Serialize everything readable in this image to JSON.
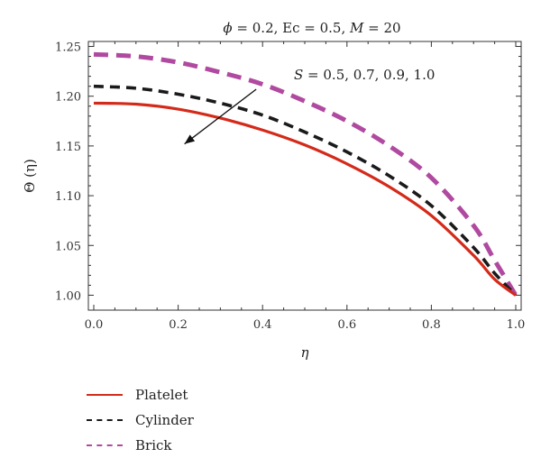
{
  "chart_data": {
    "type": "line",
    "title_parts": [
      "ϕ = 0.2, Ec = 0.5, ",
      "M",
      " = 20"
    ],
    "xlabel": "η",
    "ylabel": "Θ (η)",
    "xlim": [
      0.0,
      1.0
    ],
    "ylim": [
      0.985,
      1.255
    ],
    "xticks": [
      0.0,
      0.2,
      0.4,
      0.6,
      0.8,
      1.0
    ],
    "xtick_labels": [
      "0.0",
      "0.2",
      "0.4",
      "0.6",
      "0.8",
      "1.0"
    ],
    "yticks": [
      1.0,
      1.05,
      1.1,
      1.15,
      1.2,
      1.25
    ],
    "ytick_labels": [
      "1.00",
      "1.05",
      "1.10",
      "1.15",
      "1.20",
      "1.25"
    ],
    "annotation_parts": [
      "S",
      " = 0.5, 0.7, 0.9, 1.0"
    ],
    "annotation_arrow": {
      "from": [
        0.385,
        1.207
      ],
      "to": [
        0.215,
        1.152
      ]
    },
    "x": [
      0.0,
      0.1,
      0.2,
      0.3,
      0.4,
      0.5,
      0.6,
      0.7,
      0.8,
      0.9,
      0.95,
      1.0
    ],
    "series": [
      {
        "name": "Platelet",
        "color": "#d42a1a",
        "dash": "solid",
        "values": [
          1.193,
          1.192,
          1.187,
          1.178,
          1.166,
          1.151,
          1.132,
          1.109,
          1.08,
          1.04,
          1.016,
          1.0
        ]
      },
      {
        "name": "Cylinder",
        "color": "#1a1a1a",
        "dash": "dashed",
        "values": [
          1.21,
          1.208,
          1.202,
          1.193,
          1.181,
          1.164,
          1.144,
          1.12,
          1.09,
          1.048,
          1.022,
          1.0
        ]
      },
      {
        "name": "Brick",
        "color": "#b04aa0",
        "dash": "dashed",
        "values": [
          1.242,
          1.24,
          1.234,
          1.224,
          1.212,
          1.195,
          1.175,
          1.15,
          1.118,
          1.07,
          1.035,
          1.0
        ]
      }
    ],
    "legend_position": "bottom-left",
    "grid": false
  }
}
